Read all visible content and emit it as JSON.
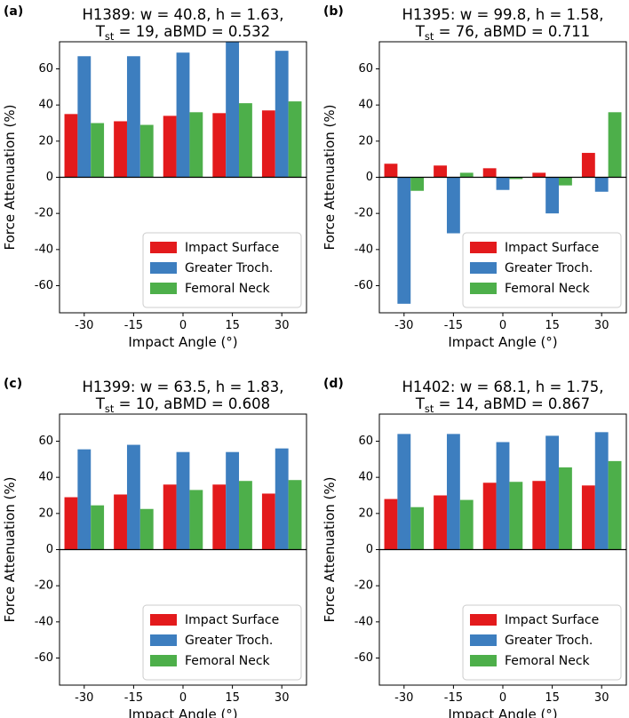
{
  "colors": {
    "impact_surface": "#e31a1c",
    "greater_troch": "#3d7ebf",
    "femoral_neck": "#4daf4a"
  },
  "chart_data": [
    {
      "panel_label": "(a)",
      "type": "bar",
      "title_line1": "H1389: w = 40.8, h = 1.63,",
      "title_line2_prefix": "T",
      "title_line2_sub": "st",
      "title_line2_suffix": " = 19, aBMD = 0.532",
      "xlabel": "Impact Angle (°)",
      "ylabel": "Force Attenuation (%)",
      "categories": [
        "-30",
        "-15",
        "0",
        "15",
        "30"
      ],
      "ylim": [
        -75,
        75
      ],
      "yticks": [
        -60,
        -40,
        -20,
        0,
        20,
        40,
        60
      ],
      "legend_position": "lower-right",
      "series": [
        {
          "name": "Impact Surface",
          "values": [
            35,
            31,
            34,
            35.5,
            37
          ]
        },
        {
          "name": "Greater Troch.",
          "values": [
            67,
            67,
            69,
            75,
            70
          ]
        },
        {
          "name": "Femoral Neck",
          "values": [
            30,
            29,
            36,
            41,
            42
          ]
        }
      ]
    },
    {
      "panel_label": "(b)",
      "type": "bar",
      "title_line1": "H1395: w = 99.8, h = 1.58,",
      "title_line2_prefix": "T",
      "title_line2_sub": "st",
      "title_line2_suffix": " = 76, aBMD = 0.711",
      "xlabel": "Impact Angle (°)",
      "ylabel": "Force Attenuation (%)",
      "categories": [
        "-30",
        "-15",
        "0",
        "15",
        "30"
      ],
      "ylim": [
        -75,
        75
      ],
      "yticks": [
        -60,
        -40,
        -20,
        0,
        20,
        40,
        60
      ],
      "legend_position": "lower-right",
      "series": [
        {
          "name": "Impact Surface",
          "values": [
            7.5,
            6.5,
            5,
            2.5,
            13.5
          ]
        },
        {
          "name": "Greater Troch.",
          "values": [
            -70,
            -31,
            -7,
            -20,
            -8
          ]
        },
        {
          "name": "Femoral Neck",
          "values": [
            -7.5,
            2.5,
            -1,
            -4.5,
            36
          ]
        }
      ]
    },
    {
      "panel_label": "(c)",
      "type": "bar",
      "title_line1": "H1399: w = 63.5, h = 1.83,",
      "title_line2_prefix": "T",
      "title_line2_sub": "st",
      "title_line2_suffix": " = 10, aBMD = 0.608",
      "xlabel": "Impact Angle (°)",
      "ylabel": "Force Attenuation (%)",
      "categories": [
        "-30",
        "-15",
        "0",
        "15",
        "30"
      ],
      "ylim": [
        -75,
        75
      ],
      "yticks": [
        -60,
        -40,
        -20,
        0,
        20,
        40,
        60
      ],
      "legend_position": "lower-right",
      "series": [
        {
          "name": "Impact Surface",
          "values": [
            29,
            30.5,
            36,
            36,
            31
          ]
        },
        {
          "name": "Greater Troch.",
          "values": [
            55.5,
            58,
            54,
            54,
            56
          ]
        },
        {
          "name": "Femoral Neck",
          "values": [
            24.5,
            22.5,
            33,
            38,
            38.5
          ]
        }
      ]
    },
    {
      "panel_label": "(d)",
      "type": "bar",
      "title_line1": "H1402: w = 68.1, h = 1.75,",
      "title_line2_prefix": "T",
      "title_line2_sub": "st",
      "title_line2_suffix": " = 14, aBMD = 0.867",
      "xlabel": "Impact Angle (°)",
      "ylabel": "Force Attenuation (%)",
      "categories": [
        "-30",
        "-15",
        "0",
        "15",
        "30"
      ],
      "ylim": [
        -75,
        75
      ],
      "yticks": [
        -60,
        -40,
        -20,
        0,
        20,
        40,
        60
      ],
      "legend_position": "lower-right",
      "series": [
        {
          "name": "Impact Surface",
          "values": [
            28,
            30,
            37,
            38,
            35.5
          ]
        },
        {
          "name": "Greater Troch.",
          "values": [
            64,
            64,
            59.5,
            63,
            65
          ]
        },
        {
          "name": "Femoral Neck",
          "values": [
            23.5,
            27.5,
            37.5,
            45.5,
            49
          ]
        }
      ]
    }
  ]
}
